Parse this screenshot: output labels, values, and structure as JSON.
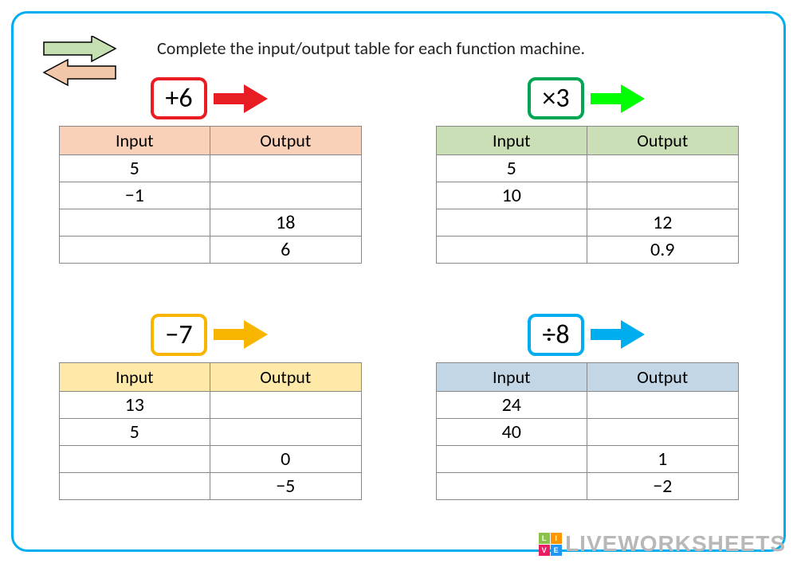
{
  "instruction": "Complete the input/output table for each function machine.",
  "headers": {
    "input": "Input",
    "output": "Output"
  },
  "corner_arrows": {
    "top_fill": "#c5dfb3",
    "bottom_fill": "#f2c7a9",
    "stroke": "#000000"
  },
  "machines": [
    {
      "op": "+6",
      "op_border": "#e81c23",
      "arrow_color": "#e81c23",
      "header_bg": "#f9d1b8",
      "rows": [
        {
          "in": "5",
          "out": ""
        },
        {
          "in": "−1",
          "out": ""
        },
        {
          "in": "",
          "out": "18"
        },
        {
          "in": "",
          "out": "6"
        }
      ]
    },
    {
      "op": "×3",
      "op_border": "#00a651",
      "arrow_color": "#00ff00",
      "header_bg": "#cadfb6",
      "rows": [
        {
          "in": "5",
          "out": ""
        },
        {
          "in": "10",
          "out": ""
        },
        {
          "in": "",
          "out": "12"
        },
        {
          "in": "",
          "out": "0.9"
        }
      ]
    },
    {
      "op": "−7",
      "op_border": "#f7b500",
      "arrow_color": "#f7b500",
      "header_bg": "#ffe9a8",
      "rows": [
        {
          "in": "13",
          "out": ""
        },
        {
          "in": "5",
          "out": ""
        },
        {
          "in": "",
          "out": "0"
        },
        {
          "in": "",
          "out": "−5"
        }
      ]
    },
    {
      "op": "÷8",
      "op_border": "#00aeef",
      "arrow_color": "#00aeef",
      "header_bg": "#c3d6e6",
      "rows": [
        {
          "in": "24",
          "out": ""
        },
        {
          "in": "40",
          "out": ""
        },
        {
          "in": "",
          "out": "1"
        },
        {
          "in": "",
          "out": "−2"
        }
      ]
    }
  ],
  "watermark": {
    "text": "LIVEWORKSHEETS",
    "badge_colors": [
      "#8bc34a",
      "#ff9800",
      "#e91e63",
      "#2196f3"
    ],
    "badge_letters": [
      "L",
      "I",
      "V",
      "E"
    ]
  }
}
